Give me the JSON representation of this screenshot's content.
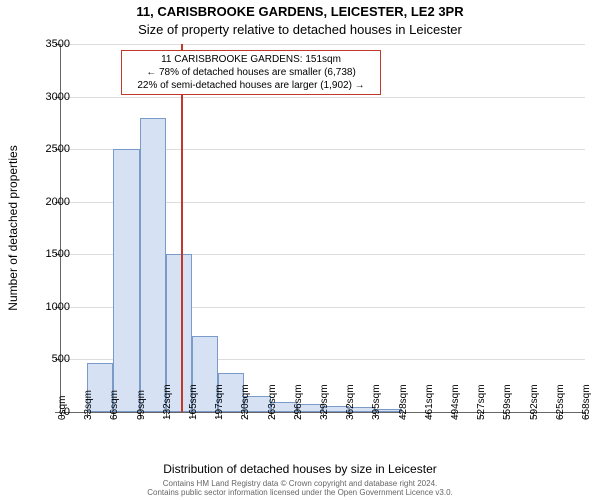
{
  "title_line1": "11, CARISBROOKE GARDENS, LEICESTER, LE2 3PR",
  "title_line2": "Size of property relative to detached houses in Leicester",
  "chart": {
    "type": "histogram",
    "x_categories": [
      "0sqm",
      "33sqm",
      "66sqm",
      "99sqm",
      "132sqm",
      "165sqm",
      "197sqm",
      "230sqm",
      "263sqm",
      "296sqm",
      "329sqm",
      "362sqm",
      "395sqm",
      "428sqm",
      "461sqm",
      "494sqm",
      "527sqm",
      "559sqm",
      "592sqm",
      "625sqm",
      "658sqm"
    ],
    "bars": [
      {
        "i": 1,
        "v": 0
      },
      {
        "i": 2,
        "v": 470
      },
      {
        "i": 3,
        "v": 2500
      },
      {
        "i": 4,
        "v": 2800
      },
      {
        "i": 5,
        "v": 1500
      },
      {
        "i": 6,
        "v": 720
      },
      {
        "i": 7,
        "v": 370
      },
      {
        "i": 8,
        "v": 150
      },
      {
        "i": 9,
        "v": 100
      },
      {
        "i": 10,
        "v": 80
      },
      {
        "i": 11,
        "v": 60
      },
      {
        "i": 12,
        "v": 50
      },
      {
        "i": 13,
        "v": 30
      },
      {
        "i": 14,
        "v": 0
      },
      {
        "i": 15,
        "v": 0
      },
      {
        "i": 16,
        "v": 0
      },
      {
        "i": 17,
        "v": 0
      },
      {
        "i": 18,
        "v": 0
      },
      {
        "i": 19,
        "v": 0
      },
      {
        "i": 20,
        "v": 0
      }
    ],
    "ylim": [
      0,
      3500
    ],
    "yticks": [
      0,
      500,
      1000,
      1500,
      2000,
      2500,
      3000,
      3500
    ],
    "bar_fill": "#d6e2f3",
    "bar_stroke": "#7a9bc9",
    "marker_x_sqm": 151,
    "marker_color": "#c0392b",
    "ylabel": "Number of detached properties",
    "xlabel": "Distribution of detached houses by size in Leicester",
    "annotation": {
      "line1": "11 CARISBROOKE GARDENS: 151sqm",
      "line2": "← 78% of detached houses are smaller (6,738)",
      "line3": "22% of semi-detached houses are larger (1,902) →"
    },
    "grid_color": "#dddddd",
    "axis_color": "#666666",
    "background_color": "#ffffff",
    "title_fontsize": 13,
    "label_fontsize": 12,
    "tick_fontsize": 11
  },
  "footer": {
    "line1": "Contains HM Land Registry data © Crown copyright and database right 2024.",
    "line2": "Contains public sector information licensed under the Open Government Licence v3.0."
  }
}
